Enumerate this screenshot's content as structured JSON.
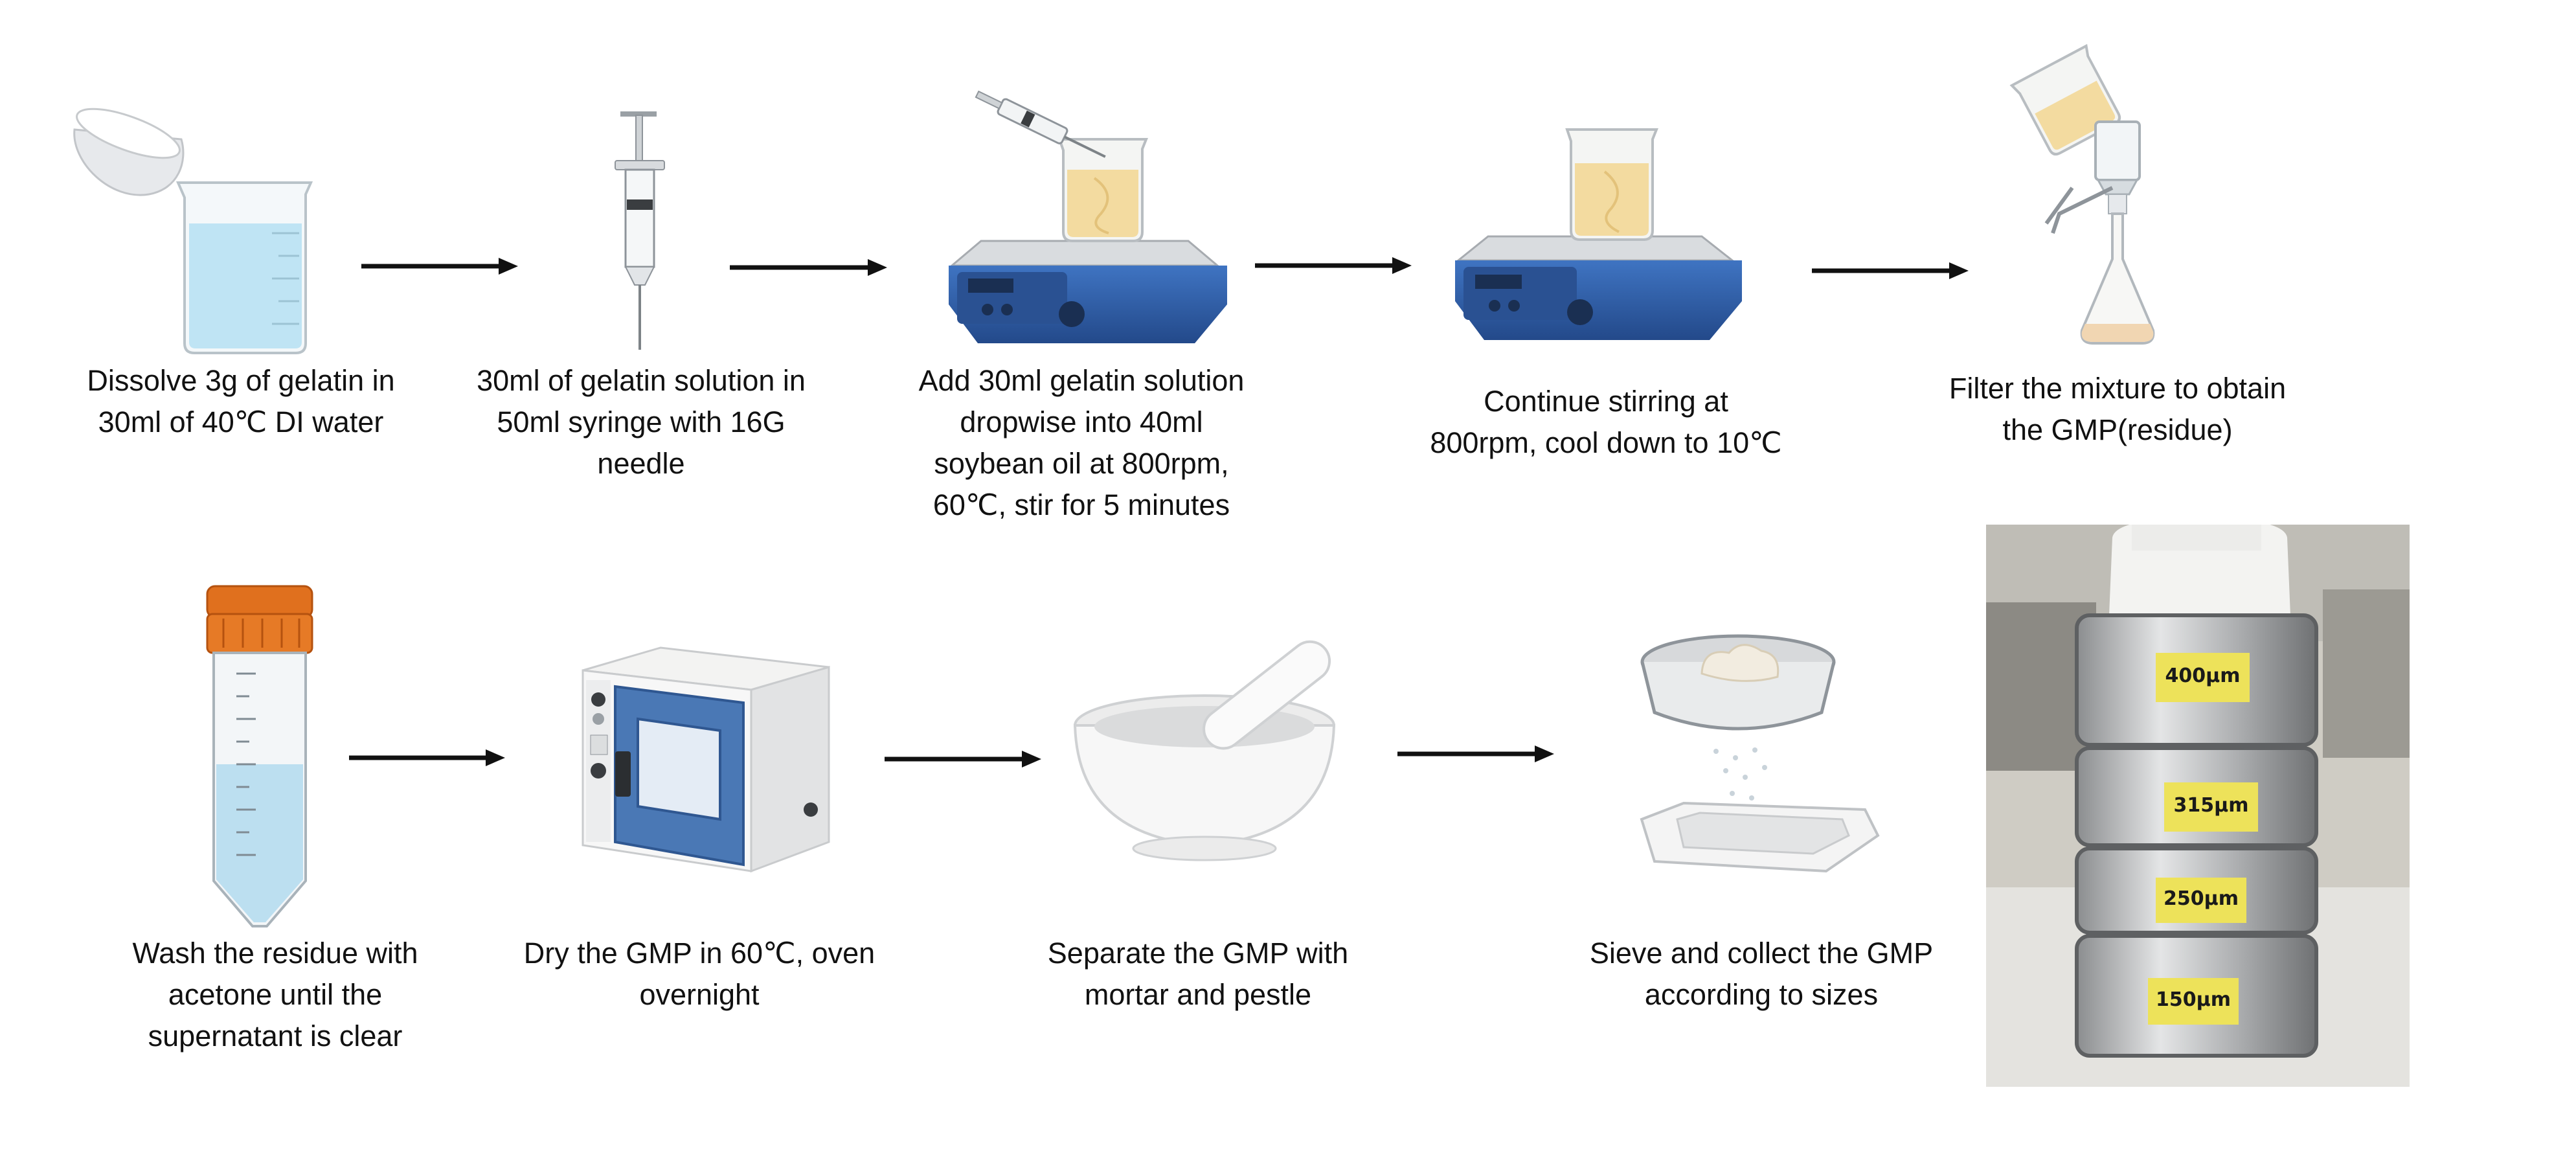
{
  "steps": [
    {
      "lines": [
        "Dissolve 3g of gelatin in",
        "30ml of 40℃ DI water"
      ],
      "icon": "beaker-with-dish-icon"
    },
    {
      "lines": [
        "30ml of gelatin solution in",
        "50ml syringe with 16G",
        "needle"
      ],
      "icon": "syringe-icon"
    },
    {
      "lines": [
        "Add 30ml gelatin solution",
        "dropwise into 40ml",
        "soybean oil at 800rpm,",
        "60℃, stir for 5 minutes"
      ],
      "icon": "hotplate-syringe-icon"
    },
    {
      "lines": [
        "Continue stirring at",
        "800rpm, cool down to 10℃"
      ],
      "icon": "hotplate-stirrer-icon"
    },
    {
      "lines": [
        "Filter the mixture to obtain",
        "the GMP(residue)"
      ],
      "icon": "vacuum-filter-icon"
    },
    {
      "lines": [
        "Wash the residue with",
        "acetone until the",
        "supernatant is clear"
      ],
      "icon": "centrifuge-tube-icon"
    },
    {
      "lines": [
        "Dry the GMP in 60℃, oven",
        "overnight"
      ],
      "icon": "drying-oven-icon"
    },
    {
      "lines": [
        "Separate the GMP with",
        "mortar and pestle"
      ],
      "icon": "mortar-pestle-icon"
    },
    {
      "lines": [
        "Sieve and collect the GMP",
        "according to sizes"
      ],
      "icon": "sieve-tray-icon"
    }
  ],
  "photo": {
    "sieve_labels": [
      "400μm",
      "315μm",
      "250μm",
      "150μm"
    ]
  },
  "colors": {
    "water": "#bfe4f4",
    "gelatin": "#f3dba0",
    "hotplate": "#2f5fa8",
    "tube_cap": "#e0701e",
    "oven_door": "#4a78b5",
    "label_tape": "#ede25a"
  }
}
